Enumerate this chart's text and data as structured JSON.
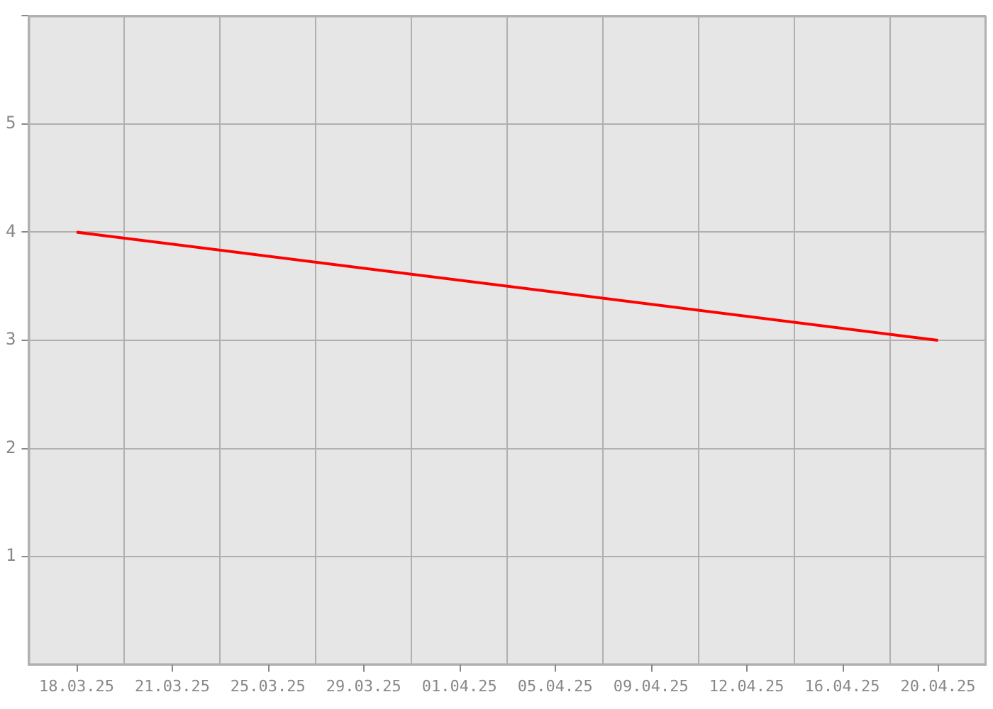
{
  "chart_data": {
    "type": "line",
    "x": [
      "--03-18",
      "--04-20"
    ],
    "series": [
      {
        "color": "#ff0000",
        "values": [
          4,
          3
        ]
      }
    ],
    "xlim": [
      "--03-16T04:00",
      "--04-21T20:00"
    ],
    "xticks": [
      {
        "value": "--03-18",
        "label": "18.03.25"
      },
      {
        "value": "--03-21T16:00",
        "label": "21.03.25"
      },
      {
        "value": "--03-25T08:00",
        "label": "25.03.25"
      },
      {
        "value": "--03-29",
        "label": "29.03.25"
      },
      {
        "value": "--04-01T16:00",
        "label": "01.04.25"
      },
      {
        "value": "--04-05T08:00",
        "label": "05.04.25"
      },
      {
        "value": "--04-09",
        "label": "09.04.25"
      },
      {
        "value": "--04-12T16:00",
        "label": "12.04.25"
      },
      {
        "value": "--04-16T08:00",
        "label": "16.04.25"
      },
      {
        "value": "--04-20",
        "label": "20.04.25"
      }
    ],
    "ylim": [
      0,
      6
    ],
    "yticks": [
      1,
      2,
      3,
      4,
      5,
      {
        "value": 6,
        "label": null
      }
    ],
    "grid": true,
    "marker": "none",
    "line_style": "solid",
    "legend": false
  }
}
